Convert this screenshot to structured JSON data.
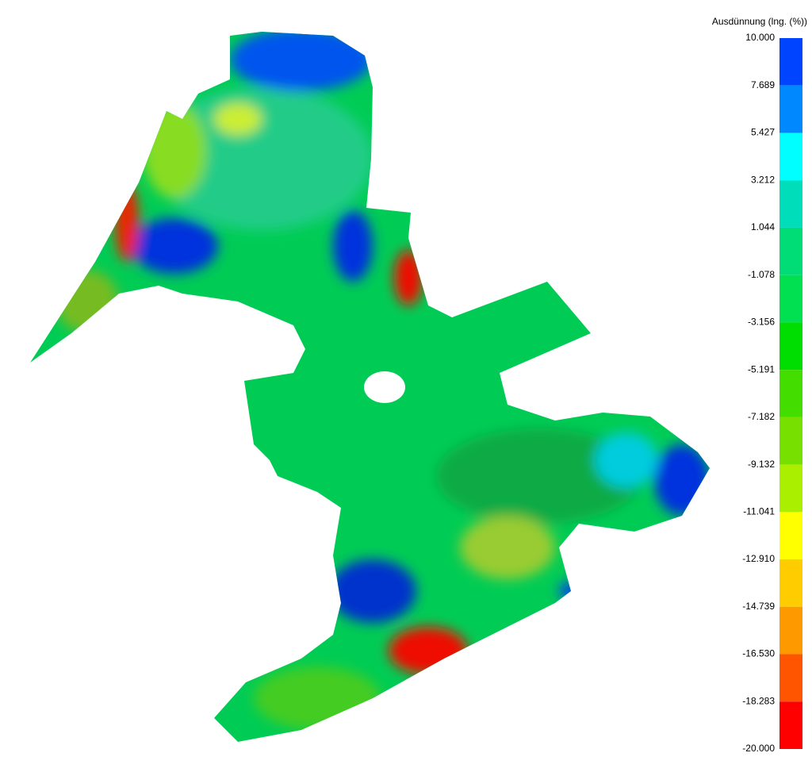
{
  "legend": {
    "title": "Ausdünnung (lng. (%))",
    "labels": [
      "10.000",
      "7.689",
      "5.427",
      "3.212",
      "1.044",
      "-1.078",
      "-3.156",
      "-5.191",
      "-7.182",
      "-9.132",
      "-11.041",
      "-12.910",
      "-14.739",
      "-16.530",
      "-18.283",
      "-20.000"
    ],
    "colors": [
      "#0044ff",
      "#0088ff",
      "#00ffff",
      "#00ddbb",
      "#00dd77",
      "#00e050",
      "#00dd00",
      "#44dd00",
      "#77e000",
      "#aaee00",
      "#ffff00",
      "#ffcc00",
      "#ff9900",
      "#ff5500",
      "#ff0000"
    ]
  }
}
